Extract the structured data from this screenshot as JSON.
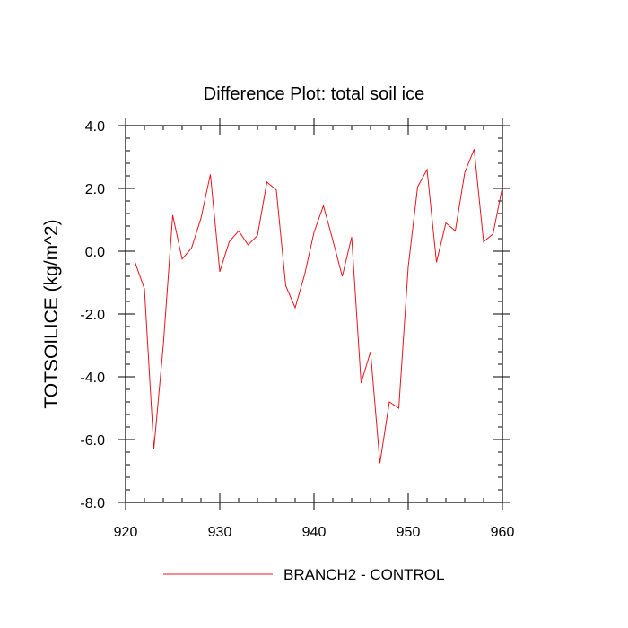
{
  "chart_data": {
    "type": "line",
    "title": "Difference Plot: total soil ice",
    "xlabel": "",
    "ylabel": "TOTSOILICE  (kg/m^2)",
    "xlim": [
      920,
      960
    ],
    "ylim": [
      -8.0,
      4.0
    ],
    "x_ticks": [
      920,
      930,
      940,
      950,
      960
    ],
    "x_tick_labels": [
      "920",
      "930",
      "940",
      "950",
      "960"
    ],
    "y_ticks": [
      -8.0,
      -6.0,
      -4.0,
      -2.0,
      0.0,
      2.0,
      4.0
    ],
    "y_tick_labels": [
      "-8.0",
      "-6.0",
      "-4.0",
      "-2.0",
      "0.0",
      "2.0",
      "4.0"
    ],
    "grid": false,
    "legend_position": "bottom-center",
    "series": [
      {
        "name": "BRANCH2 - CONTROL",
        "color": "#e8141c",
        "x": [
          921,
          922,
          923,
          924,
          925,
          926,
          927,
          928,
          929,
          930,
          931,
          932,
          933,
          934,
          935,
          936,
          937,
          938,
          939,
          940,
          941,
          942,
          943,
          944,
          945,
          946,
          947,
          948,
          949,
          950,
          951,
          952,
          953,
          954,
          955,
          956,
          957,
          958,
          959,
          960
        ],
        "y": [
          -0.35,
          -1.2,
          -6.3,
          -3.0,
          1.15,
          -0.25,
          0.1,
          1.05,
          2.45,
          -0.65,
          0.3,
          0.65,
          0.2,
          0.5,
          2.2,
          1.95,
          -1.1,
          -1.8,
          -0.75,
          0.6,
          1.45,
          0.35,
          -0.8,
          0.45,
          -4.2,
          -3.2,
          -6.75,
          -4.8,
          -5.0,
          -0.5,
          2.05,
          2.6,
          -0.35,
          0.9,
          0.65,
          2.5,
          3.25,
          0.3,
          0.55,
          2.05
        ]
      }
    ]
  }
}
